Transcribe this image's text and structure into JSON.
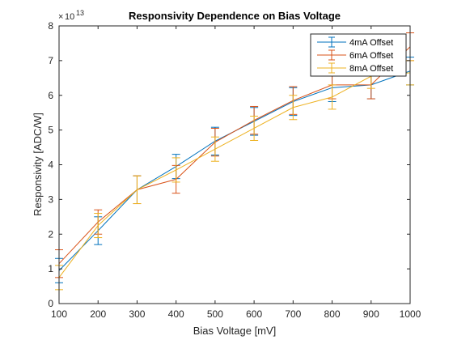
{
  "chart_data": {
    "type": "line",
    "title": "Responsivity Dependence on Bias Voltage",
    "xlabel": "Bias Voltage [mV]",
    "ylabel": "Responsivity [ADC/W]",
    "y_exponent_base": "10",
    "y_exponent_power": "13",
    "xlim": [
      100,
      1000
    ],
    "ylim": [
      0,
      8
    ],
    "x_ticks": [
      100,
      200,
      300,
      400,
      500,
      600,
      700,
      800,
      900,
      1000
    ],
    "y_ticks": [
      0,
      1,
      2,
      3,
      4,
      5,
      6,
      7,
      8
    ],
    "grid": false,
    "legend_position": "top-right",
    "x": [
      100,
      200,
      300,
      400,
      500,
      600,
      700,
      800,
      900,
      1000
    ],
    "series": [
      {
        "name": "4mA Offset",
        "color": "#0072BD",
        "values": [
          0.95,
          2.1,
          3.28,
          3.95,
          4.68,
          5.25,
          5.82,
          6.22,
          6.3,
          6.7
        ],
        "errors": [
          0.35,
          0.4,
          0.4,
          0.35,
          0.4,
          0.4,
          0.4,
          0.4,
          0.4,
          0.4
        ]
      },
      {
        "name": "6mA Offset",
        "color": "#D95319",
        "values": [
          1.15,
          2.35,
          3.28,
          3.58,
          4.65,
          5.28,
          5.85,
          6.3,
          6.3,
          7.4
        ],
        "errors": [
          0.4,
          0.35,
          0.4,
          0.4,
          0.4,
          0.4,
          0.4,
          0.4,
          0.4,
          0.4
        ]
      },
      {
        "name": "8mA Offset",
        "color": "#EDB120",
        "values": [
          0.75,
          2.25,
          3.28,
          3.85,
          4.45,
          5.05,
          5.65,
          5.95,
          6.55,
          6.65
        ],
        "errors": [
          0.35,
          0.35,
          0.4,
          0.35,
          0.35,
          0.35,
          0.35,
          0.35,
          0.35,
          0.35
        ]
      }
    ]
  }
}
